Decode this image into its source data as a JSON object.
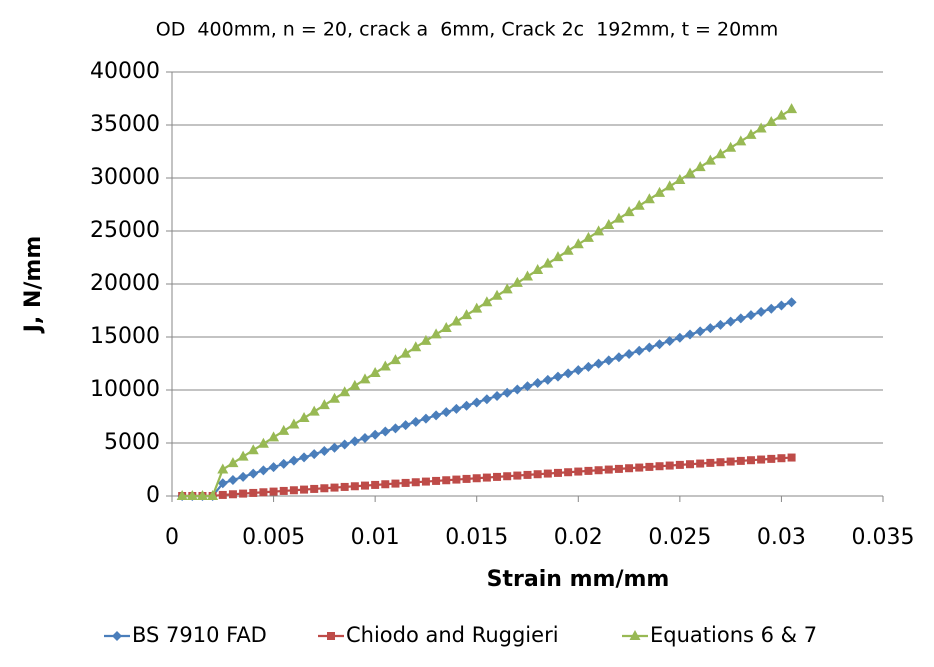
{
  "chart_data": {
    "type": "line",
    "title": "OD  400mm, n = 20, crack a  6mm, Crack 2c  192mm, t = 20mm",
    "x_label": "Strain mm/mm",
    "y_label": "J, N/mm",
    "x": [
      0.0005,
      0.001,
      0.0015,
      0.002,
      0.0025,
      0.003,
      0.0035,
      0.004,
      0.0045,
      0.005,
      0.0055,
      0.006,
      0.0065,
      0.007,
      0.0075,
      0.008,
      0.0085,
      0.009,
      0.0095,
      0.01,
      0.0105,
      0.011,
      0.0115,
      0.012,
      0.0125,
      0.013,
      0.0135,
      0.014,
      0.0145,
      0.015,
      0.0155,
      0.016,
      0.0165,
      0.017,
      0.0175,
      0.018,
      0.0185,
      0.019,
      0.0195,
      0.02,
      0.0205,
      0.021,
      0.0215,
      0.022,
      0.0225,
      0.023,
      0.0235,
      0.024,
      0.0245,
      0.025,
      0.0255,
      0.026,
      0.0265,
      0.027,
      0.0275,
      0.028,
      0.0285,
      0.029,
      0.0295,
      0.03,
      0.0305
    ],
    "series": [
      {
        "name": "BS 7910 FAD",
        "color": "#4a7ebb",
        "marker": "diamond",
        "values": [
          0,
          0,
          0,
          0,
          1200,
          1505,
          1810,
          2115,
          2420,
          2725,
          3030,
          3335,
          3640,
          3945,
          4250,
          4555,
          4860,
          5165,
          5470,
          5775,
          6080,
          6385,
          6690,
          6995,
          7300,
          7605,
          7910,
          8215,
          8520,
          8825,
          9130,
          9435,
          9740,
          10045,
          10350,
          10655,
          10960,
          11265,
          11570,
          11875,
          12180,
          12485,
          12790,
          13095,
          13400,
          13705,
          14010,
          14315,
          14620,
          14925,
          15230,
          15535,
          15840,
          16145,
          16450,
          16755,
          17060,
          17365,
          17670,
          17975,
          18280
        ]
      },
      {
        "name": "Chiodo and Ruggieri",
        "color": "#be4b48",
        "marker": "square",
        "values": [
          0,
          0,
          0,
          0,
          100,
          163,
          226,
          289,
          352,
          415,
          478,
          541,
          604,
          667,
          730,
          793,
          856,
          919,
          982,
          1045,
          1108,
          1171,
          1234,
          1297,
          1360,
          1423,
          1486,
          1549,
          1612,
          1675,
          1738,
          1801,
          1864,
          1927,
          1990,
          2053,
          2116,
          2179,
          2242,
          2305,
          2368,
          2431,
          2494,
          2557,
          2620,
          2683,
          2746,
          2809,
          2872,
          2935,
          2998,
          3061,
          3124,
          3187,
          3250,
          3313,
          3376,
          3439,
          3502,
          3565,
          3628
        ]
      },
      {
        "name": "Equations 6 & 7",
        "color": "#98b954",
        "marker": "triangle",
        "values": [
          0,
          0,
          0,
          0,
          2500,
          3107,
          3714,
          4321,
          4928,
          5535,
          6142,
          6749,
          7356,
          7963,
          8570,
          9177,
          9784,
          10391,
          10998,
          11605,
          12212,
          12819,
          13426,
          14033,
          14640,
          15247,
          15854,
          16461,
          17068,
          17675,
          18282,
          18889,
          19496,
          20103,
          20710,
          21317,
          21924,
          22531,
          23138,
          23745,
          24352,
          24959,
          25566,
          26173,
          26780,
          27387,
          27994,
          28601,
          29208,
          29815,
          30422,
          31029,
          31636,
          32243,
          32850,
          33457,
          34064,
          34671,
          35278,
          35885,
          36492
        ]
      }
    ],
    "xlim": [
      0,
      0.035
    ],
    "xticks": [
      0,
      0.005,
      0.01,
      0.015,
      0.02,
      0.025,
      0.03,
      0.035
    ],
    "ylim": [
      0,
      40000
    ],
    "yticks": [
      0,
      5000,
      10000,
      15000,
      20000,
      25000,
      30000,
      35000,
      40000
    ],
    "grid": true,
    "legend": "bottom"
  }
}
